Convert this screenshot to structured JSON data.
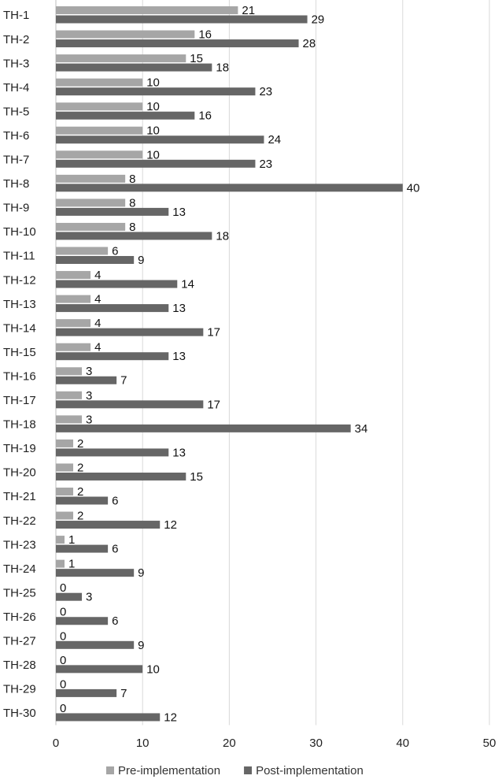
{
  "chart_data": {
    "type": "bar",
    "orientation": "horizontal",
    "categories": [
      "TH-1",
      "TH-2",
      "TH-3",
      "TH-4",
      "TH-5",
      "TH-6",
      "TH-7",
      "TH-8",
      "TH-9",
      "TH-10",
      "TH-11",
      "TH-12",
      "TH-13",
      "TH-14",
      "TH-15",
      "TH-16",
      "TH-17",
      "TH-18",
      "TH-19",
      "TH-20",
      "TH-21",
      "TH-22",
      "TH-23",
      "TH-24",
      "TH-25",
      "TH-26",
      "TH-27",
      "TH-28",
      "TH-29",
      "TH-30"
    ],
    "series": [
      {
        "name": "Pre-implementation",
        "color": "#a6a6a6",
        "values": [
          21,
          16,
          15,
          10,
          10,
          10,
          10,
          8,
          8,
          8,
          6,
          4,
          4,
          4,
          4,
          3,
          3,
          3,
          2,
          2,
          2,
          2,
          1,
          1,
          0,
          0,
          0,
          0,
          0,
          0
        ]
      },
      {
        "name": "Post-implementation",
        "color": "#666666",
        "values": [
          29,
          28,
          18,
          23,
          16,
          24,
          23,
          40,
          13,
          18,
          9,
          14,
          13,
          17,
          13,
          7,
          17,
          34,
          13,
          15,
          6,
          12,
          6,
          9,
          3,
          6,
          9,
          10,
          7,
          12
        ]
      }
    ],
    "xlim": [
      0,
      50
    ],
    "xticks": [
      0,
      10,
      20,
      30,
      40,
      50
    ],
    "grid": "vertical",
    "legend": "bottom",
    "title": "",
    "xlabel": "",
    "ylabel": ""
  }
}
